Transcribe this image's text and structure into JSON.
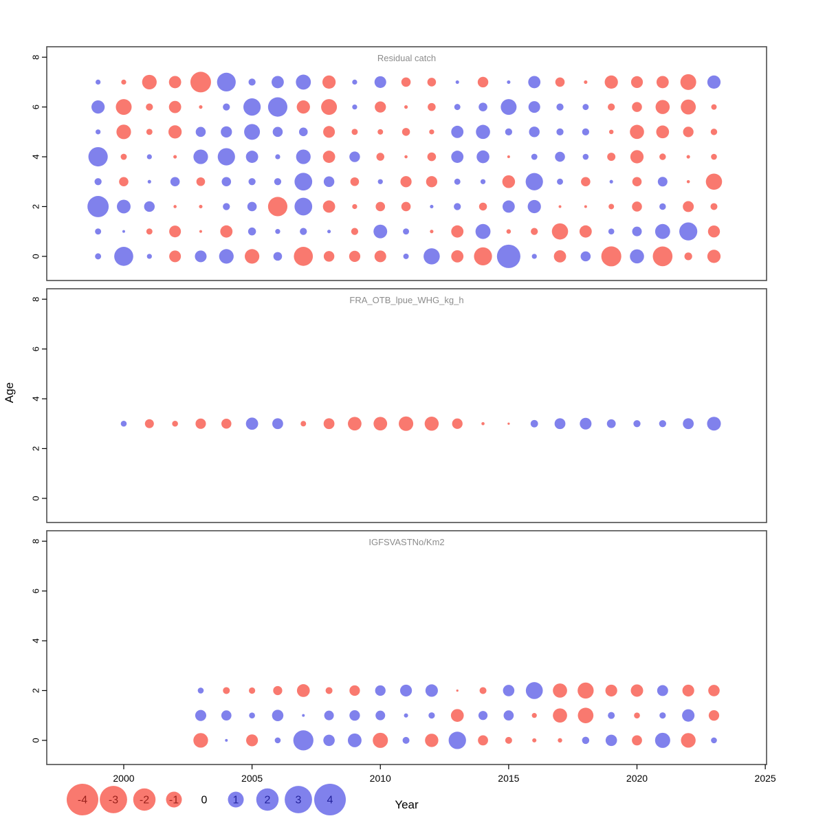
{
  "figure": {
    "xlab": "Year",
    "ylab": "Age",
    "x_ticks": [
      2000,
      2005,
      2010,
      2015,
      2020,
      2025
    ],
    "y_ticks": [
      0,
      2,
      4,
      6,
      8
    ]
  },
  "colors": {
    "negative_fill": "#f9796f",
    "positive_fill": "#8081ec",
    "negative_label": "#99201a",
    "positive_label": "#22229b",
    "zero_label": "#000000",
    "title_text": "#8c8c8c",
    "panel_border": "#4d4d4d",
    "tick_label": "#000000"
  },
  "legend": {
    "values": [
      -4,
      -3,
      -2,
      -1,
      0,
      1,
      2,
      3,
      4
    ],
    "labels": [
      "-4",
      "-3",
      "-2",
      "-1",
      "0",
      "1",
      "2",
      "3",
      "4"
    ]
  },
  "chart_data": [
    {
      "type": "bubble",
      "title": "Residual catch",
      "xlim": [
        1997,
        2025.05
      ],
      "ylim": [
        -0.97,
        8.42
      ],
      "year_start": 1999,
      "series": [
        {
          "age": 7,
          "values": [
            0.1,
            -0.1,
            -0.85,
            -0.6,
            -1.7,
            1.4,
            0.2,
            0.6,
            0.9,
            -0.7,
            0.1,
            0.55,
            -0.35,
            -0.3,
            0.05,
            -0.45,
            0.05,
            0.6,
            -0.35,
            -0.05,
            -0.7,
            -0.56,
            -0.6,
            -1.0,
            0.7
          ]
        },
        {
          "age": 6,
          "values": [
            0.7,
            -1.0,
            -0.2,
            -0.6,
            -0.05,
            0.2,
            1.2,
            1.5,
            -0.7,
            -1.0,
            0.1,
            -0.5,
            -0.05,
            -0.25,
            0.15,
            0.3,
            1.0,
            0.55,
            0.2,
            0.15,
            -0.2,
            -0.4,
            -0.8,
            -0.9,
            -0.12
          ]
        },
        {
          "age": 5,
          "values": [
            0.1,
            -0.85,
            -0.15,
            -0.7,
            0.4,
            0.5,
            1.0,
            0.4,
            0.3,
            -0.55,
            -0.15,
            -0.12,
            -0.25,
            -0.1,
            0.6,
            0.8,
            0.2,
            0.45,
            0.2,
            0.2,
            -0.08,
            -0.8,
            -0.66,
            -0.44,
            -0.17
          ]
        },
        {
          "age": 4,
          "values": [
            1.5,
            -0.15,
            0.1,
            -0.05,
            0.85,
            1.2,
            0.6,
            0.1,
            0.85,
            -0.6,
            0.45,
            -0.25,
            -0.04,
            -0.3,
            0.6,
            0.65,
            -0.03,
            0.15,
            0.4,
            0.14,
            -0.27,
            -0.7,
            -0.17,
            -0.05,
            -0.14
          ]
        },
        {
          "age": 3,
          "values": [
            0.2,
            -0.35,
            0.05,
            0.35,
            -0.3,
            0.35,
            0.2,
            0.2,
            1.25,
            0.45,
            -0.3,
            0.1,
            -0.5,
            -0.5,
            0.15,
            0.1,
            -0.65,
            1.2,
            0.15,
            -0.35,
            0.05,
            -0.35,
            0.37,
            -0.04,
            -1.05
          ]
        },
        {
          "age": 2,
          "values": [
            1.8,
            0.75,
            0.45,
            -0.04,
            -0.05,
            0.2,
            0.35,
            -1.5,
            1.25,
            -0.6,
            -0.1,
            -0.35,
            -0.35,
            0.05,
            0.2,
            -0.25,
            0.6,
            0.7,
            -0.03,
            -0.03,
            -0.12,
            -0.4,
            0.17,
            -0.48,
            -0.19
          ]
        },
        {
          "age": 1,
          "values": [
            0.15,
            0.03,
            -0.15,
            -0.55,
            -0.03,
            -0.6,
            0.25,
            0.1,
            0.2,
            0.05,
            -0.2,
            0.75,
            0.15,
            -0.05,
            -0.6,
            0.9,
            -0.08,
            -0.2,
            -1.05,
            -0.6,
            0.14,
            0.37,
            0.9,
            1.3,
            -0.57
          ]
        },
        {
          "age": 0,
          "values": [
            0.15,
            1.45,
            0.1,
            -0.55,
            0.55,
            0.85,
            -0.85,
            0.3,
            -1.45,
            -0.45,
            -0.5,
            -0.55,
            0.12,
            1.05,
            -0.6,
            -1.3,
            2.2,
            0.1,
            -0.6,
            0.4,
            -1.6,
            0.8,
            -1.55,
            -0.24,
            -0.7
          ]
        }
      ]
    },
    {
      "type": "bubble",
      "title": "FRA_OTB_lpue_WHG_kg_h",
      "xlim": [
        1997,
        2025.05
      ],
      "ylim": [
        -0.97,
        8.42
      ],
      "year_start": 2000,
      "series": [
        {
          "age": 3,
          "values": [
            0.14,
            -0.32,
            -0.14,
            -0.43,
            -0.4,
            0.6,
            0.47,
            -0.12,
            -0.47,
            -0.74,
            -0.74,
            -0.84,
            -0.79,
            -0.44,
            -0.04,
            -0.02,
            0.22,
            0.47,
            0.55,
            0.31,
            0.2,
            0.2,
            0.47,
            0.76
          ]
        }
      ]
    },
    {
      "type": "bubble",
      "title": "IGFSVASTNo/Km2",
      "xlim": [
        1997,
        2025.05
      ],
      "ylim": [
        -0.97,
        8.42
      ],
      "year_start": 2003,
      "series": [
        {
          "age": 2,
          "values": [
            0.14,
            -0.19,
            -0.16,
            -0.33,
            -0.66,
            -0.19,
            -0.44,
            0.44,
            0.56,
            0.62,
            -0.02,
            -0.19,
            0.52,
            1.15,
            -0.81,
            -1.03,
            -0.56,
            -0.61,
            0.48,
            -0.56,
            -0.52
          ]
        },
        {
          "age": 1,
          "values": [
            0.49,
            0.41,
            0.14,
            0.52,
            0.03,
            0.37,
            0.44,
            0.37,
            0.07,
            0.16,
            -0.66,
            0.33,
            0.41,
            -0.1,
            -0.81,
            -0.97,
            0.19,
            -0.14,
            0.16,
            0.62,
            -0.44
          ]
        },
        {
          "age": 0,
          "values": [
            -0.86,
            0.03,
            -0.56,
            0.14,
            1.62,
            0.52,
            0.75,
            -0.92,
            0.19,
            -0.71,
            1.21,
            -0.41,
            -0.19,
            -0.07,
            -0.08,
            0.21,
            0.52,
            -0.41,
            0.92,
            -0.86,
            0.14
          ]
        }
      ]
    }
  ]
}
